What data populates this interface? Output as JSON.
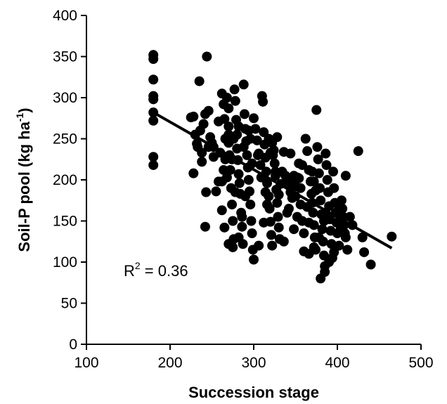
{
  "chart_data": {
    "type": "scatter",
    "xlabel": "Succession stage",
    "ylabel_main": "Soil-P pool (kg ha",
    "ylabel_sup": "-1",
    "ylabel_close": ")",
    "xlim": [
      100,
      500
    ],
    "ylim": [
      0,
      400
    ],
    "x_ticks": [
      100,
      200,
      300,
      400,
      500
    ],
    "y_ticks": [
      0,
      50,
      100,
      150,
      200,
      250,
      300,
      350,
      400
    ],
    "grid": false,
    "annotation": {
      "prefix": "R",
      "sup": "2",
      "suffix": " = 0.36"
    },
    "regression_line": {
      "x": [
        180,
        465
      ],
      "y": [
        282,
        117
      ]
    },
    "points": [
      [
        180,
        352
      ],
      [
        180,
        347
      ],
      [
        180,
        322
      ],
      [
        180,
        302
      ],
      [
        180,
        298
      ],
      [
        180,
        282
      ],
      [
        180,
        272
      ],
      [
        180,
        228
      ],
      [
        180,
        218
      ],
      [
        225,
        276
      ],
      [
        228,
        277
      ],
      [
        230,
        255
      ],
      [
        232,
        244
      ],
      [
        233,
        240
      ],
      [
        235,
        320
      ],
      [
        236,
        260
      ],
      [
        238,
        233
      ],
      [
        240,
        268
      ],
      [
        242,
        280
      ],
      [
        244,
        350
      ],
      [
        246,
        240
      ],
      [
        248,
        252
      ],
      [
        250,
        245
      ],
      [
        243,
        185
      ],
      [
        242,
        143
      ],
      [
        228,
        208
      ],
      [
        238,
        222
      ],
      [
        246,
        284
      ],
      [
        252,
        228
      ],
      [
        255,
        186
      ],
      [
        258,
        271
      ],
      [
        260,
        233
      ],
      [
        262,
        305
      ],
      [
        264,
        292
      ],
      [
        265,
        274
      ],
      [
        266,
        250
      ],
      [
        268,
        300
      ],
      [
        270,
        287
      ],
      [
        270,
        265
      ],
      [
        271,
        230
      ],
      [
        272,
        212
      ],
      [
        273,
        190
      ],
      [
        274,
        170
      ],
      [
        275,
        150
      ],
      [
        276,
        128
      ],
      [
        277,
        310
      ],
      [
        278,
        296
      ],
      [
        279,
        273
      ],
      [
        280,
        255
      ],
      [
        280,
        238
      ],
      [
        281,
        224
      ],
      [
        282,
        207
      ],
      [
        283,
        196
      ],
      [
        284,
        183
      ],
      [
        285,
        160
      ],
      [
        286,
        143
      ],
      [
        287,
        122
      ],
      [
        288,
        316
      ],
      [
        289,
        280
      ],
      [
        290,
        262
      ],
      [
        291,
        247
      ],
      [
        292,
        230
      ],
      [
        293,
        215
      ],
      [
        294,
        200
      ],
      [
        295,
        186
      ],
      [
        296,
        170
      ],
      [
        297,
        150
      ],
      [
        298,
        135
      ],
      [
        299,
        115
      ],
      [
        300,
        103
      ],
      [
        268,
        203
      ],
      [
        262,
        163
      ],
      [
        265,
        142
      ],
      [
        270,
        122
      ],
      [
        275,
        118
      ],
      [
        300,
        275
      ],
      [
        302,
        262
      ],
      [
        304,
        248
      ],
      [
        306,
        232
      ],
      [
        308,
        218
      ],
      [
        309,
        203
      ],
      [
        310,
        302
      ],
      [
        311,
        295
      ],
      [
        312,
        258
      ],
      [
        313,
        243
      ],
      [
        314,
        227
      ],
      [
        315,
        210
      ],
      [
        316,
        196
      ],
      [
        318,
        180
      ],
      [
        319,
        165
      ],
      [
        320,
        149
      ],
      [
        321,
        133
      ],
      [
        322,
        120
      ],
      [
        323,
        230
      ],
      [
        324,
        236
      ],
      [
        325,
        220
      ],
      [
        326,
        205
      ],
      [
        327,
        188
      ],
      [
        328,
        172
      ],
      [
        329,
        155
      ],
      [
        330,
        142
      ],
      [
        331,
        128
      ],
      [
        332,
        195
      ],
      [
        334,
        210
      ],
      [
        336,
        234
      ],
      [
        338,
        205
      ],
      [
        340,
        200
      ],
      [
        342,
        194
      ],
      [
        344,
        185
      ],
      [
        346,
        198
      ],
      [
        348,
        205
      ],
      [
        350,
        180
      ],
      [
        352,
        203
      ],
      [
        354,
        220
      ],
      [
        356,
        190
      ],
      [
        358,
        150
      ],
      [
        360,
        135
      ],
      [
        362,
        250
      ],
      [
        364,
        235
      ],
      [
        366,
        212
      ],
      [
        368,
        198
      ],
      [
        369,
        183
      ],
      [
        370,
        172
      ],
      [
        371,
        160
      ],
      [
        372,
        145
      ],
      [
        373,
        130
      ],
      [
        374,
        115
      ],
      [
        375,
        285
      ],
      [
        376,
        240
      ],
      [
        377,
        225
      ],
      [
        378,
        208
      ],
      [
        379,
        190
      ],
      [
        380,
        175
      ],
      [
        381,
        158
      ],
      [
        382,
        140
      ],
      [
        383,
        125
      ],
      [
        384,
        108
      ],
      [
        380,
        80
      ],
      [
        385,
        95
      ],
      [
        386,
        232
      ],
      [
        387,
        218
      ],
      [
        388,
        200
      ],
      [
        389,
        185
      ],
      [
        390,
        168
      ],
      [
        391,
        152
      ],
      [
        392,
        138
      ],
      [
        393,
        122
      ],
      [
        394,
        105
      ],
      [
        395,
        210
      ],
      [
        396,
        190
      ],
      [
        397,
        172
      ],
      [
        398,
        160
      ],
      [
        399,
        148
      ],
      [
        400,
        135
      ],
      [
        401,
        170
      ],
      [
        402,
        160
      ],
      [
        403,
        150
      ],
      [
        404,
        140
      ],
      [
        405,
        175
      ],
      [
        406,
        165
      ],
      [
        407,
        155
      ],
      [
        408,
        145
      ],
      [
        409,
        135
      ],
      [
        410,
        205
      ],
      [
        412,
        115
      ],
      [
        386,
        160
      ],
      [
        384,
        150
      ],
      [
        378,
        130
      ],
      [
        372,
        118
      ],
      [
        366,
        110
      ],
      [
        360,
        113
      ],
      [
        356,
        170
      ],
      [
        352,
        155
      ],
      [
        348,
        140
      ],
      [
        344,
        232
      ],
      [
        340,
        160
      ],
      [
        336,
        125
      ],
      [
        330,
        182
      ],
      [
        326,
        210
      ],
      [
        322,
        245
      ],
      [
        318,
        250
      ],
      [
        314,
        185
      ],
      [
        305,
        230
      ],
      [
        296,
        250
      ],
      [
        288,
        240
      ],
      [
        282,
        265
      ],
      [
        276,
        250
      ],
      [
        270,
        245
      ],
      [
        264,
        212
      ],
      [
        258,
        198
      ],
      [
        252,
        240
      ],
      [
        425,
        235
      ],
      [
        430,
        130
      ],
      [
        432,
        112
      ],
      [
        440,
        97
      ],
      [
        465,
        131
      ],
      [
        415,
        155
      ],
      [
        418,
        145
      ],
      [
        410,
        130
      ],
      [
        402,
        120
      ],
      [
        396,
        112
      ],
      [
        390,
        100
      ],
      [
        385,
        88
      ],
      [
        370,
        210
      ],
      [
        372,
        198
      ],
      [
        374,
        187
      ],
      [
        364,
        167
      ],
      [
        366,
        148
      ],
      [
        358,
        218
      ],
      [
        354,
        202
      ],
      [
        350,
        192
      ],
      [
        346,
        178
      ],
      [
        342,
        165
      ],
      [
        328,
        252
      ],
      [
        320,
        233
      ],
      [
        316,
        170
      ],
      [
        312,
        148
      ],
      [
        306,
        120
      ],
      [
        298,
        220
      ],
      [
        294,
        260
      ],
      [
        290,
        180
      ],
      [
        286,
        155
      ],
      [
        282,
        130
      ],
      [
        278,
        185
      ],
      [
        274,
        225
      ],
      [
        270,
        255
      ],
      [
        266,
        225
      ],
      [
        262,
        198
      ]
    ]
  }
}
